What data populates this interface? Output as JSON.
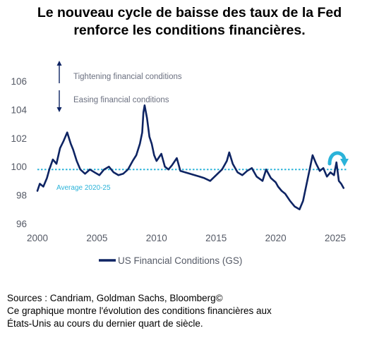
{
  "header": {
    "title_line1": "Le nouveau cycle de baisse des taux de la Fed",
    "title_line2": "renforce les conditions financières."
  },
  "footer": {
    "sources": "Sources : Candriam, Goldman Sachs, Bloomberg©",
    "caption_line1": "Ce graphique montre l'évolution des conditions financières aux",
    "caption_line2": "États-Unis au cours du dernier quart de siècle."
  },
  "colors": {
    "series": "#0e2463",
    "average": "#2bb3d9",
    "arrow": "#2bb3d9"
  },
  "chart_data": {
    "type": "line",
    "title": "",
    "xlabel": "",
    "ylabel": "",
    "xlim": [
      2000,
      2026
    ],
    "ylim": [
      96,
      107
    ],
    "x_ticks": [
      "2000",
      "2005",
      "2010",
      "2015",
      "2020",
      "2025"
    ],
    "y_ticks": [
      "96",
      "98",
      "100",
      "102",
      "104",
      "106"
    ],
    "grid": false,
    "legend": {
      "position": "bottom",
      "entries": [
        "US Financial Conditions (GS)"
      ]
    },
    "annotations": {
      "tightening": "Tightening financial conditions",
      "easing": "Easing financial conditions",
      "average_label": "Average 2020-25",
      "average_value": 99.8
    },
    "series": [
      {
        "name": "US Financial Conditions (GS)",
        "x": [
          2000.0,
          2000.2,
          2000.5,
          2000.8,
          2001.0,
          2001.3,
          2001.6,
          2001.9,
          2002.2,
          2002.5,
          2002.8,
          2003.0,
          2003.3,
          2003.6,
          2004.0,
          2004.4,
          2004.8,
          2005.2,
          2005.6,
          2006.0,
          2006.4,
          2006.8,
          2007.2,
          2007.6,
          2008.0,
          2008.3,
          2008.6,
          2008.8,
          2008.9,
          2009.0,
          2009.2,
          2009.4,
          2009.6,
          2009.8,
          2010.0,
          2010.4,
          2010.7,
          2011.0,
          2011.3,
          2011.7,
          2012.0,
          2012.4,
          2012.8,
          2013.2,
          2013.6,
          2014.0,
          2014.5,
          2015.0,
          2015.5,
          2015.9,
          2016.1,
          2016.4,
          2016.8,
          2017.2,
          2017.6,
          2018.0,
          2018.4,
          2018.9,
          2019.2,
          2019.6,
          2020.0,
          2020.2,
          2020.5,
          2020.8,
          2021.2,
          2021.6,
          2022.0,
          2022.3,
          2022.6,
          2022.9,
          2023.1,
          2023.4,
          2023.7,
          2024.0,
          2024.3,
          2024.6,
          2024.9,
          2025.1,
          2025.3,
          2025.5,
          2025.7
        ],
        "values": [
          98.3,
          98.8,
          98.6,
          99.2,
          99.8,
          100.5,
          100.2,
          101.3,
          101.8,
          102.4,
          101.6,
          101.2,
          100.4,
          99.8,
          99.5,
          99.8,
          99.6,
          99.4,
          99.8,
          100.0,
          99.6,
          99.4,
          99.5,
          99.8,
          100.4,
          100.8,
          101.6,
          102.4,
          103.8,
          104.3,
          103.4,
          102.1,
          101.6,
          100.8,
          100.4,
          100.9,
          100.0,
          99.8,
          100.1,
          100.6,
          99.7,
          99.6,
          99.5,
          99.4,
          99.3,
          99.2,
          99.0,
          99.4,
          99.8,
          100.4,
          101.0,
          100.2,
          99.6,
          99.4,
          99.7,
          99.9,
          99.3,
          99.0,
          99.8,
          99.2,
          98.9,
          98.6,
          98.3,
          98.1,
          97.6,
          97.2,
          97.0,
          97.6,
          98.8,
          100.0,
          100.8,
          100.2,
          99.7,
          99.9,
          99.3,
          99.6,
          99.4,
          100.3,
          99.0,
          98.8,
          98.5
        ]
      }
    ]
  }
}
